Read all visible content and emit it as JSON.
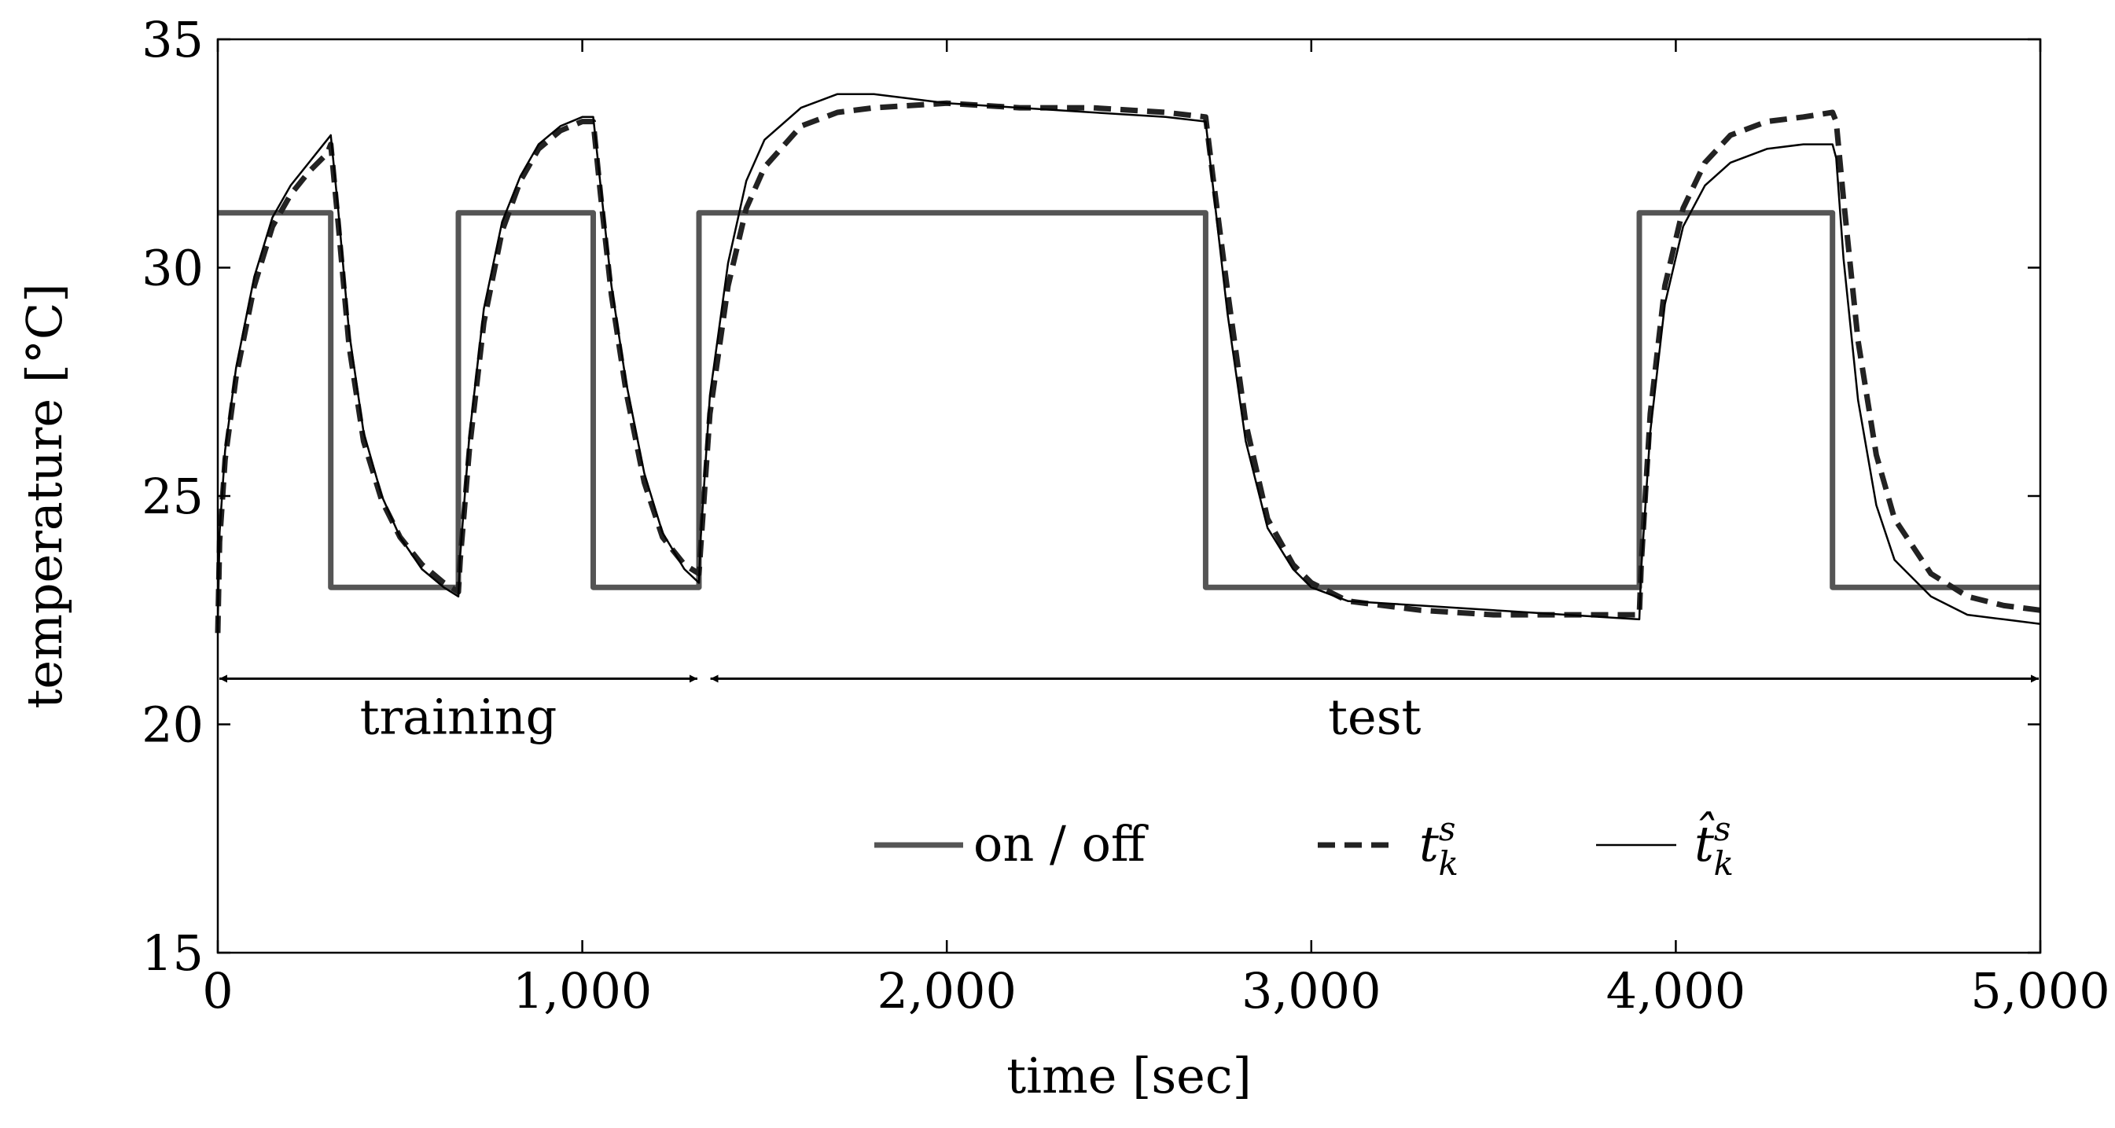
{
  "chart_data": {
    "type": "line",
    "xlabel": "time [sec]",
    "ylabel": "temperature [°C]",
    "xlim": [
      0,
      5000
    ],
    "ylim": [
      15,
      35
    ],
    "x_ticks": [
      0,
      1000,
      2000,
      3000,
      4000,
      5000
    ],
    "x_tick_labels": [
      "0",
      "1,000",
      "2,000",
      "3,000",
      "4,000",
      "5,000"
    ],
    "y_ticks": [
      15,
      20,
      25,
      30,
      35
    ],
    "y_tick_labels": [
      "15",
      "20",
      "25",
      "30",
      "35"
    ],
    "grid": false,
    "legend_position": "lower-right",
    "annotations": [
      {
        "label": "training",
        "x_from": 0,
        "x_to": 1320,
        "y": 21
      },
      {
        "label": "test",
        "x_from": 1330,
        "x_to": 5000,
        "y": 21
      }
    ],
    "series": [
      {
        "name": "on / off",
        "style": "thick-solid-gray",
        "x": [
          0,
          310,
          310,
          660,
          660,
          1030,
          1030,
          1320,
          1320,
          2710,
          2710,
          3900,
          3900,
          4430,
          4430,
          5000
        ],
        "y": [
          31.2,
          31.2,
          23.0,
          23.0,
          31.2,
          31.2,
          23.0,
          23.0,
          31.2,
          31.2,
          23.0,
          23.0,
          31.2,
          31.2,
          23.0,
          23.0
        ]
      },
      {
        "name": "t_k^s",
        "legend_label": "t",
        "legend_sup": "s",
        "legend_sub": "k",
        "style": "thick-dashed-black",
        "x": [
          0,
          5,
          20,
          50,
          100,
          150,
          200,
          250,
          300,
          310,
          330,
          360,
          400,
          450,
          500,
          560,
          620,
          660,
          665,
          690,
          730,
          780,
          830,
          880,
          940,
          1000,
          1030,
          1050,
          1080,
          1120,
          1170,
          1220,
          1280,
          1320,
          1325,
          1350,
          1400,
          1450,
          1500,
          1600,
          1700,
          1800,
          2000,
          2200,
          2400,
          2600,
          2710,
          2730,
          2770,
          2820,
          2880,
          2950,
          3000,
          3100,
          3300,
          3500,
          3700,
          3900,
          3905,
          3930,
          3970,
          4020,
          4080,
          4150,
          4250,
          4350,
          4430,
          4440,
          4460,
          4500,
          4550,
          4600,
          4700,
          4800,
          4900,
          5000
        ],
        "y": [
          22.0,
          24.0,
          25.8,
          27.6,
          29.6,
          30.9,
          31.6,
          32.1,
          32.5,
          32.7,
          31.0,
          28.3,
          26.2,
          24.9,
          24.1,
          23.5,
          23.1,
          22.9,
          23.6,
          26.0,
          28.8,
          30.8,
          31.9,
          32.6,
          33.0,
          33.2,
          33.2,
          31.6,
          29.4,
          27.3,
          25.3,
          24.1,
          23.5,
          23.3,
          23.9,
          26.8,
          29.6,
          31.3,
          32.2,
          33.1,
          33.4,
          33.5,
          33.6,
          33.5,
          33.5,
          33.4,
          33.3,
          32.0,
          29.5,
          26.6,
          24.5,
          23.5,
          23.1,
          22.7,
          22.5,
          22.4,
          22.4,
          22.4,
          23.5,
          26.8,
          29.6,
          31.3,
          32.3,
          32.9,
          33.2,
          33.3,
          33.4,
          33.2,
          31.5,
          28.4,
          25.9,
          24.5,
          23.3,
          22.8,
          22.6,
          22.5
        ]
      },
      {
        "name": "t̂_k^s",
        "legend_label": "t̂",
        "legend_sup": "s",
        "legend_sub": "k",
        "style": "thin-solid-black",
        "x": [
          0,
          5,
          20,
          50,
          100,
          150,
          200,
          250,
          300,
          310,
          330,
          360,
          400,
          450,
          500,
          560,
          620,
          660,
          665,
          690,
          730,
          780,
          830,
          880,
          940,
          1000,
          1030,
          1050,
          1080,
          1120,
          1170,
          1220,
          1280,
          1320,
          1325,
          1350,
          1400,
          1450,
          1500,
          1600,
          1700,
          1800,
          2000,
          2200,
          2400,
          2600,
          2710,
          2730,
          2770,
          2820,
          2880,
          2950,
          3000,
          3100,
          3300,
          3500,
          3700,
          3900,
          3905,
          3930,
          3970,
          4020,
          4080,
          4150,
          4250,
          4350,
          4430,
          4440,
          4460,
          4500,
          4550,
          4600,
          4700,
          4800,
          4900,
          5000
        ],
        "y": [
          22.2,
          24.2,
          26.0,
          27.8,
          29.8,
          31.1,
          31.8,
          32.3,
          32.8,
          32.9,
          31.3,
          28.6,
          26.4,
          25.0,
          24.1,
          23.4,
          23.0,
          22.8,
          23.7,
          26.3,
          29.1,
          31.0,
          32.0,
          32.7,
          33.1,
          33.3,
          33.3,
          31.8,
          29.6,
          27.5,
          25.5,
          24.2,
          23.4,
          23.1,
          24.1,
          27.2,
          30.1,
          31.9,
          32.8,
          33.5,
          33.8,
          33.8,
          33.6,
          33.5,
          33.4,
          33.3,
          33.2,
          31.8,
          29.0,
          26.2,
          24.3,
          23.4,
          23.0,
          22.7,
          22.6,
          22.5,
          22.4,
          22.3,
          23.4,
          26.4,
          29.2,
          30.9,
          31.8,
          32.3,
          32.6,
          32.7,
          32.7,
          32.4,
          30.2,
          27.1,
          24.8,
          23.6,
          22.8,
          22.4,
          22.3,
          22.2
        ]
      }
    ]
  }
}
